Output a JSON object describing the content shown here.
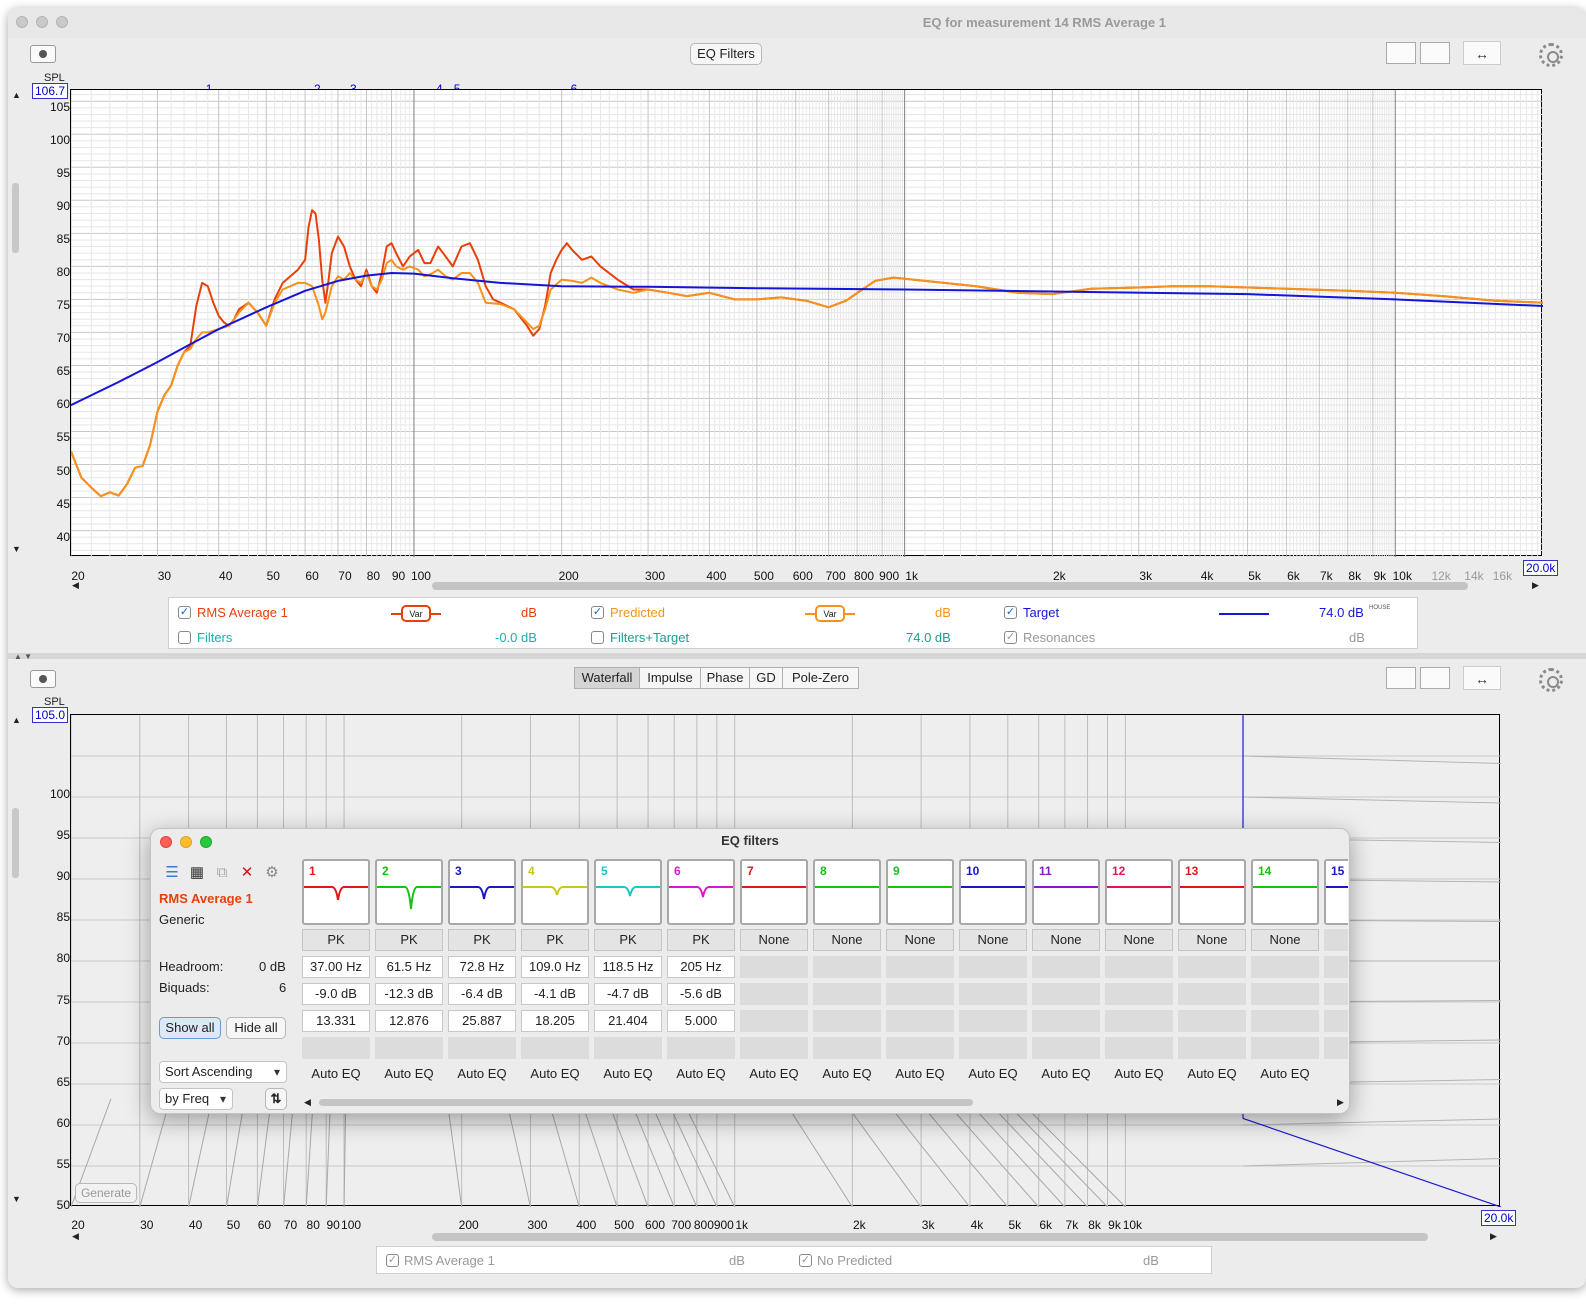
{
  "window": {
    "title": "EQ for measurement 14 RMS Average 1"
  },
  "toolbar": {
    "eq_filters_label": "EQ Filters"
  },
  "top_graph": {
    "y_unit": "SPL",
    "y_max_box": "106.7",
    "y_ticks": [
      "105",
      "100",
      "95",
      "90",
      "85",
      "80",
      "75",
      "70",
      "65",
      "60",
      "55",
      "50",
      "45",
      "40"
    ],
    "x_ticks": [
      "20",
      "30",
      "40",
      "50",
      "60",
      "70",
      "80",
      "90",
      "100",
      "200",
      "300",
      "400",
      "500",
      "600",
      "700",
      "800",
      "900",
      "1k",
      "2k",
      "3k",
      "4k",
      "5k",
      "6k",
      "7k",
      "8k",
      "9k",
      "10k",
      "12k",
      "14k",
      "16k"
    ],
    "x_max_box": "20.0k",
    "filter_markers": [
      "1",
      "2",
      "3",
      "4",
      "5",
      "6"
    ]
  },
  "chart_data": {
    "type": "line",
    "x_scale": "log",
    "xlim": [
      20,
      20000
    ],
    "ylim": [
      36,
      106.7
    ],
    "ylabel": "SPL",
    "series": [
      {
        "name": "RMS Average 1",
        "color": "#e8400a",
        "points": [
          [
            20,
            52
          ],
          [
            21,
            48
          ],
          [
            22,
            46.5
          ],
          [
            23,
            45.2
          ],
          [
            24,
            45.8
          ],
          [
            25,
            45.3
          ],
          [
            26,
            47
          ],
          [
            27,
            49.5
          ],
          [
            28,
            49.8
          ],
          [
            29,
            53
          ],
          [
            30,
            58
          ],
          [
            31,
            60.5
          ],
          [
            32,
            62
          ],
          [
            33,
            65
          ],
          [
            34,
            67
          ],
          [
            35,
            68
          ],
          [
            36,
            74
          ],
          [
            37,
            77.5
          ],
          [
            38,
            77
          ],
          [
            39,
            74.5
          ],
          [
            40,
            72.5
          ],
          [
            41,
            71.5
          ],
          [
            42,
            71
          ],
          [
            43,
            72
          ],
          [
            44,
            73.5
          ],
          [
            46,
            74.5
          ],
          [
            48,
            73
          ],
          [
            50,
            71
          ],
          [
            52,
            75
          ],
          [
            54,
            77.5
          ],
          [
            56,
            78.5
          ],
          [
            58,
            79.5
          ],
          [
            60,
            81
          ],
          [
            61,
            86
          ],
          [
            62,
            88.5
          ],
          [
            63,
            88
          ],
          [
            64,
            84
          ],
          [
            65,
            78
          ],
          [
            66,
            74.5
          ],
          [
            67,
            78
          ],
          [
            68,
            82
          ],
          [
            70,
            84.5
          ],
          [
            72,
            83
          ],
          [
            74,
            80
          ],
          [
            76,
            78
          ],
          [
            78,
            77
          ],
          [
            80,
            79.5
          ],
          [
            82,
            77
          ],
          [
            84,
            76
          ],
          [
            86,
            79
          ],
          [
            88,
            83
          ],
          [
            90,
            83.5
          ],
          [
            92,
            82
          ],
          [
            95,
            80
          ],
          [
            98,
            81.5
          ],
          [
            102,
            82.5
          ],
          [
            105,
            80.5
          ],
          [
            108,
            80.5
          ],
          [
            112,
            83
          ],
          [
            116,
            81.5
          ],
          [
            120,
            80
          ],
          [
            125,
            83
          ],
          [
            130,
            83.5
          ],
          [
            135,
            81
          ],
          [
            140,
            77
          ],
          [
            145,
            75
          ],
          [
            150,
            74.5
          ],
          [
            160,
            73.5
          ],
          [
            170,
            71
          ],
          [
            175,
            69.5
          ],
          [
            180,
            70.5
          ],
          [
            185,
            74
          ],
          [
            190,
            79
          ],
          [
            195,
            81
          ],
          [
            200,
            82.5
          ],
          [
            205,
            83.5
          ],
          [
            210,
            82.5
          ],
          [
            220,
            81
          ],
          [
            230,
            81.5
          ],
          [
            240,
            80
          ],
          [
            260,
            78
          ],
          [
            280,
            76.5
          ],
          [
            300,
            76.5
          ],
          [
            330,
            76
          ],
          [
            360,
            75.5
          ],
          [
            400,
            76
          ],
          [
            450,
            75
          ],
          [
            500,
            75
          ],
          [
            560,
            75.3
          ],
          [
            630,
            74.8
          ],
          [
            700,
            73.8
          ],
          [
            760,
            74.8
          ],
          [
            820,
            76.5
          ],
          [
            870,
            77.8
          ],
          [
            950,
            78.3
          ],
          [
            1100,
            77.8
          ],
          [
            1400,
            77
          ],
          [
            1700,
            76
          ],
          [
            2000,
            75.8
          ],
          [
            2400,
            76.6
          ],
          [
            3000,
            76.8
          ],
          [
            3500,
            77
          ],
          [
            4200,
            77
          ],
          [
            5000,
            76.8
          ],
          [
            6000,
            76.6
          ],
          [
            8000,
            76.3
          ],
          [
            10000,
            76
          ],
          [
            12500,
            75.5
          ],
          [
            16000,
            74.8
          ],
          [
            20000,
            74.5
          ]
        ]
      },
      {
        "name": "Predicted",
        "color": "#f5921c",
        "points": [
          [
            20,
            52
          ],
          [
            21,
            48
          ],
          [
            22,
            46.5
          ],
          [
            23,
            45.2
          ],
          [
            24,
            45.8
          ],
          [
            25,
            45.3
          ],
          [
            26,
            47
          ],
          [
            27,
            49.5
          ],
          [
            28,
            49.8
          ],
          [
            29,
            53
          ],
          [
            30,
            58
          ],
          [
            31,
            60.5
          ],
          [
            32,
            62
          ],
          [
            33,
            65
          ],
          [
            34,
            67
          ],
          [
            35,
            67.5
          ],
          [
            36,
            69
          ],
          [
            37,
            70
          ],
          [
            38,
            70
          ],
          [
            40,
            70.5
          ],
          [
            42,
            71
          ],
          [
            44,
            73
          ],
          [
            46,
            74.5
          ],
          [
            48,
            73
          ],
          [
            50,
            71
          ],
          [
            52,
            74.5
          ],
          [
            54,
            76.5
          ],
          [
            56,
            77
          ],
          [
            58,
            77.5
          ],
          [
            60,
            77.5
          ],
          [
            62,
            77
          ],
          [
            64,
            74
          ],
          [
            65,
            72
          ],
          [
            66,
            73
          ],
          [
            68,
            77
          ],
          [
            70,
            78.5
          ],
          [
            72,
            78
          ],
          [
            74,
            79
          ],
          [
            76,
            78
          ],
          [
            78,
            77.5
          ],
          [
            80,
            79
          ],
          [
            82,
            77
          ],
          [
            84,
            76.5
          ],
          [
            86,
            78
          ],
          [
            88,
            80.5
          ],
          [
            90,
            81
          ],
          [
            92,
            80
          ],
          [
            95,
            79.5
          ],
          [
            98,
            80
          ],
          [
            102,
            79.5
          ],
          [
            105,
            78.5
          ],
          [
            108,
            78.8
          ],
          [
            112,
            79.5
          ],
          [
            116,
            78.5
          ],
          [
            120,
            78
          ],
          [
            125,
            79
          ],
          [
            130,
            79
          ],
          [
            135,
            77.5
          ],
          [
            140,
            74.5
          ],
          [
            150,
            74.3
          ],
          [
            160,
            73.5
          ],
          [
            170,
            71.5
          ],
          [
            175,
            70.5
          ],
          [
            180,
            71
          ],
          [
            185,
            73.5
          ],
          [
            190,
            76.5
          ],
          [
            200,
            78
          ],
          [
            210,
            77.8
          ],
          [
            220,
            77.5
          ],
          [
            230,
            78.3
          ],
          [
            240,
            77.5
          ],
          [
            260,
            76.5
          ],
          [
            280,
            76
          ],
          [
            300,
            76.5
          ],
          [
            330,
            76
          ],
          [
            360,
            75.5
          ],
          [
            400,
            76
          ],
          [
            450,
            75
          ],
          [
            500,
            75
          ],
          [
            560,
            75.3
          ],
          [
            630,
            74.8
          ],
          [
            700,
            73.8
          ],
          [
            760,
            74.8
          ],
          [
            820,
            76.5
          ],
          [
            870,
            77.8
          ],
          [
            950,
            78.3
          ],
          [
            1100,
            77.8
          ],
          [
            1400,
            77
          ],
          [
            1700,
            76
          ],
          [
            2000,
            75.8
          ],
          [
            2400,
            76.6
          ],
          [
            3000,
            76.8
          ],
          [
            3500,
            77
          ],
          [
            4200,
            77
          ],
          [
            5000,
            76.8
          ],
          [
            6000,
            76.6
          ],
          [
            8000,
            76.3
          ],
          [
            10000,
            76
          ],
          [
            12500,
            75.5
          ],
          [
            16000,
            74.8
          ],
          [
            20000,
            74.5
          ]
        ]
      },
      {
        "name": "Target",
        "color": "#1515d8",
        "points": [
          [
            20,
            59
          ],
          [
            25,
            62.5
          ],
          [
            30,
            65.5
          ],
          [
            35,
            68.2
          ],
          [
            40,
            70.5
          ],
          [
            50,
            73.8
          ],
          [
            60,
            76.3
          ],
          [
            70,
            77.8
          ],
          [
            80,
            78.6
          ],
          [
            90,
            79
          ],
          [
            100,
            78.9
          ],
          [
            120,
            78.2
          ],
          [
            150,
            77.5
          ],
          [
            200,
            77
          ],
          [
            300,
            76.9
          ],
          [
            500,
            76.7
          ],
          [
            1000,
            76.5
          ],
          [
            2000,
            76.2
          ],
          [
            5000,
            75.8
          ],
          [
            10000,
            75
          ],
          [
            20000,
            74
          ]
        ]
      }
    ]
  },
  "legend": {
    "rms_label": "RMS Average 1",
    "rms_var": "Var",
    "rms_unit": "dB",
    "predicted_label": "Predicted",
    "predicted_var": "Var",
    "predicted_unit": "dB",
    "target_label": "Target",
    "target_value": "74.0 dB",
    "target_house": "HOUSE",
    "filters_label": "Filters",
    "filters_value": "-0.0 dB",
    "filters_target_label": "Filters+Target",
    "filters_target_value": "74.0 dB",
    "resonances_label": "Resonances",
    "resonances_unit": "dB"
  },
  "bottom_tabs": [
    "Waterfall",
    "Impulse",
    "Phase",
    "GD",
    "Pole-Zero"
  ],
  "bottom_graph": {
    "y_unit": "SPL",
    "y_max_box": "105.0",
    "y_ticks": [
      "100",
      "95",
      "90",
      "85",
      "80",
      "75",
      "70",
      "65",
      "60",
      "55",
      "50"
    ],
    "x_ticks": [
      "20",
      "30",
      "40",
      "50",
      "60",
      "70",
      "80",
      "90",
      "100",
      "200",
      "300",
      "400",
      "500",
      "600",
      "700",
      "800",
      "900",
      "1k",
      "2k",
      "3k",
      "4k",
      "5k",
      "6k",
      "7k",
      "8k",
      "9k",
      "10k"
    ],
    "x_max_box": "20.0k",
    "generate_label": "Generate"
  },
  "bottom_legend": {
    "rms_label": "RMS Average 1",
    "rms_unit": "dB",
    "predicted_label": "No Predicted",
    "predicted_unit": "dB"
  },
  "eq_dialog": {
    "title": "EQ filters",
    "measurement": "RMS Average 1",
    "equaliser": "Generic",
    "headroom_label": "Headroom:",
    "headroom_value": "0 dB",
    "biquads_label": "Biquads:",
    "biquads_value": "6",
    "show_all": "Show all",
    "hide_all": "Hide all",
    "sort_label": "Sort Ascending",
    "sort_by": "by Freq",
    "filters": [
      {
        "index": "1",
        "color": "#e01818",
        "type": "PK",
        "freq": "37.00 Hz",
        "gain": "-9.0 dB",
        "q": "13.331",
        "mode": "Auto EQ"
      },
      {
        "index": "2",
        "color": "#18c018",
        "type": "PK",
        "freq": "61.5 Hz",
        "gain": "-12.3 dB",
        "q": "12.876",
        "mode": "Auto EQ"
      },
      {
        "index": "3",
        "color": "#1818c8",
        "type": "PK",
        "freq": "72.8 Hz",
        "gain": "-6.4 dB",
        "q": "25.887",
        "mode": "Auto EQ"
      },
      {
        "index": "4",
        "color": "#c8c818",
        "type": "PK",
        "freq": "109.0 Hz",
        "gain": "-4.1 dB",
        "q": "18.205",
        "mode": "Auto EQ"
      },
      {
        "index": "5",
        "color": "#18c8c8",
        "type": "PK",
        "freq": "118.5 Hz",
        "gain": "-4.7 dB",
        "q": "21.404",
        "mode": "Auto EQ"
      },
      {
        "index": "6",
        "color": "#d818c8",
        "type": "PK",
        "freq": "205 Hz",
        "gain": "-5.6 dB",
        "q": "5.000",
        "mode": "Auto EQ"
      },
      {
        "index": "7",
        "color": "#e01818",
        "type": "None",
        "freq": "",
        "gain": "",
        "q": "",
        "mode": "Auto EQ"
      },
      {
        "index": "8",
        "color": "#18c018",
        "type": "None",
        "freq": "",
        "gain": "",
        "q": "",
        "mode": "Auto EQ"
      },
      {
        "index": "9",
        "color": "#18c018",
        "type": "None",
        "freq": "",
        "gain": "",
        "q": "",
        "mode": "Auto EQ"
      },
      {
        "index": "10",
        "color": "#1818c8",
        "type": "None",
        "freq": "",
        "gain": "",
        "q": "",
        "mode": "Auto EQ"
      },
      {
        "index": "11",
        "color": "#8818c8",
        "type": "None",
        "freq": "",
        "gain": "",
        "q": "",
        "mode": "Auto EQ"
      },
      {
        "index": "12",
        "color": "#e01850",
        "type": "None",
        "freq": "",
        "gain": "",
        "q": "",
        "mode": "Auto EQ"
      },
      {
        "index": "13",
        "color": "#e01818",
        "type": "None",
        "freq": "",
        "gain": "",
        "q": "",
        "mode": "Auto EQ"
      },
      {
        "index": "14",
        "color": "#18c018",
        "type": "None",
        "freq": "",
        "gain": "",
        "q": "",
        "mode": "Auto EQ"
      },
      {
        "index": "15",
        "color": "#1818c8",
        "type": "",
        "freq": "",
        "gain": "",
        "q": "",
        "mode": "A"
      }
    ]
  }
}
